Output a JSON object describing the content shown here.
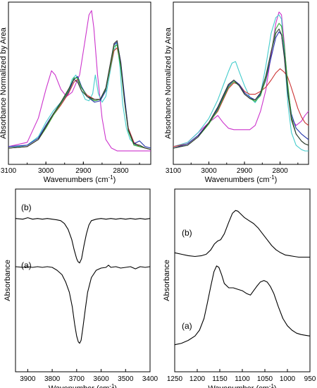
{
  "chart_data": [
    {
      "type": "line",
      "xlabel": "Wavenumbers (cm",
      "xlabel_sup": "-1",
      "xlabel_close": ")",
      "ylabel": "Absorbance Normalized by Area",
      "xlim": [
        3100,
        2720
      ],
      "ylim": [
        0,
        1
      ],
      "x_reversed": true,
      "xticks": [
        3100,
        3000,
        2900,
        2800
      ],
      "series": [
        {
          "color": "#cc33cc",
          "x": [
            3100,
            3050,
            3020,
            3000,
            2985,
            2975,
            2960,
            2945,
            2930,
            2910,
            2895,
            2885,
            2878,
            2872,
            2862,
            2850,
            2840,
            2825,
            2810,
            2795,
            2780,
            2765,
            2750,
            2735,
            2720
          ],
          "y": [
            0.05,
            0.08,
            0.25,
            0.45,
            0.58,
            0.55,
            0.45,
            0.4,
            0.43,
            0.55,
            0.8,
            0.97,
            1.0,
            0.88,
            0.55,
            0.25,
            0.1,
            0.04,
            0.02,
            0.02,
            0.02,
            0.02,
            0.02,
            0.02,
            0.02
          ]
        },
        {
          "color": "#44cccc",
          "x": [
            3100,
            3050,
            3020,
            3000,
            2980,
            2960,
            2940,
            2930,
            2920,
            2905,
            2895,
            2885,
            2875,
            2868,
            2860,
            2850,
            2840,
            2828,
            2818,
            2810,
            2802,
            2795,
            2785,
            2775,
            2760,
            2745,
            2735,
            2720
          ],
          "y": [
            0.04,
            0.06,
            0.12,
            0.22,
            0.3,
            0.36,
            0.44,
            0.52,
            0.55,
            0.44,
            0.38,
            0.37,
            0.42,
            0.55,
            0.42,
            0.36,
            0.4,
            0.58,
            0.72,
            0.78,
            0.6,
            0.35,
            0.18,
            0.1,
            0.06,
            0.05,
            0.04,
            0.03
          ]
        },
        {
          "color": "#cc3333",
          "x": [
            3100,
            3050,
            3020,
            3000,
            2980,
            2960,
            2940,
            2925,
            2915,
            2905,
            2890,
            2870,
            2855,
            2840,
            2828,
            2818,
            2810,
            2800,
            2790,
            2780,
            2765,
            2750,
            2735,
            2720
          ],
          "y": [
            0.04,
            0.05,
            0.1,
            0.18,
            0.27,
            0.34,
            0.42,
            0.5,
            0.52,
            0.46,
            0.41,
            0.38,
            0.38,
            0.45,
            0.6,
            0.72,
            0.74,
            0.62,
            0.38,
            0.18,
            0.08,
            0.05,
            0.04,
            0.03
          ]
        },
        {
          "color": "#2233aa",
          "x": [
            3100,
            3050,
            3020,
            3000,
            2980,
            2960,
            2940,
            2925,
            2915,
            2905,
            2890,
            2870,
            2855,
            2840,
            2828,
            2818,
            2810,
            2800,
            2790,
            2780,
            2765,
            2750,
            2735,
            2720
          ],
          "y": [
            0.05,
            0.06,
            0.11,
            0.2,
            0.28,
            0.35,
            0.43,
            0.52,
            0.54,
            0.47,
            0.4,
            0.36,
            0.37,
            0.44,
            0.62,
            0.76,
            0.78,
            0.64,
            0.4,
            0.17,
            0.07,
            0.09,
            0.05,
            0.04
          ]
        },
        {
          "color": "#33aa33",
          "x": [
            3100,
            3050,
            3020,
            3000,
            2980,
            2960,
            2940,
            2925,
            2915,
            2905,
            2890,
            2870,
            2855,
            2840,
            2828,
            2818,
            2810,
            2800,
            2790,
            2780,
            2765,
            2750,
            2735,
            2720
          ],
          "y": [
            0.04,
            0.05,
            0.1,
            0.18,
            0.27,
            0.35,
            0.44,
            0.53,
            0.53,
            0.46,
            0.4,
            0.37,
            0.38,
            0.45,
            0.61,
            0.75,
            0.76,
            0.6,
            0.36,
            0.16,
            0.06,
            0.05,
            0.04,
            0.03
          ]
        },
        {
          "color": "#333333",
          "x": [
            3100,
            3050,
            3020,
            3000,
            2980,
            2960,
            2940,
            2925,
            2915,
            2905,
            2890,
            2870,
            2855,
            2840,
            2828,
            2818,
            2810,
            2800,
            2790,
            2780,
            2765,
            2750,
            2735,
            2720
          ],
          "y": [
            0.04,
            0.05,
            0.1,
            0.19,
            0.28,
            0.36,
            0.45,
            0.52,
            0.5,
            0.44,
            0.4,
            0.38,
            0.38,
            0.46,
            0.63,
            0.77,
            0.79,
            0.63,
            0.37,
            0.17,
            0.07,
            0.06,
            0.04,
            0.03
          ]
        }
      ]
    },
    {
      "type": "line",
      "xlabel": "Wavenumbers (cm",
      "xlabel_sup": "-1",
      "xlabel_close": ")",
      "ylabel": "Absorbance Normalized by Area",
      "xlim": [
        3100,
        2720
      ],
      "ylim": [
        0,
        1
      ],
      "x_reversed": true,
      "xticks": [
        3100,
        3000,
        2900,
        2800
      ],
      "series": [
        {
          "color": "#cc33cc",
          "x": [
            3100,
            3060,
            3030,
            3000,
            2975,
            2960,
            2945,
            2930,
            2915,
            2900,
            2885,
            2870,
            2855,
            2840,
            2825,
            2812,
            2803,
            2796,
            2788,
            2778,
            2768,
            2755,
            2740,
            2730,
            2720
          ],
          "y": [
            0.05,
            0.08,
            0.15,
            0.22,
            0.27,
            0.22,
            0.18,
            0.17,
            0.17,
            0.17,
            0.17,
            0.2,
            0.3,
            0.45,
            0.7,
            0.92,
            1.0,
            0.98,
            0.78,
            0.45,
            0.25,
            0.2,
            0.23,
            0.27,
            0.3
          ]
        },
        {
          "color": "#44cccc",
          "x": [
            3100,
            3060,
            3030,
            3000,
            2975,
            2960,
            2945,
            2935,
            2925,
            2915,
            2900,
            2885,
            2870,
            2855,
            2840,
            2825,
            2812,
            2803,
            2796,
            2788,
            2778,
            2768,
            2755,
            2740,
            2730,
            2720
          ],
          "y": [
            0.05,
            0.08,
            0.15,
            0.25,
            0.38,
            0.48,
            0.58,
            0.64,
            0.65,
            0.58,
            0.48,
            0.4,
            0.36,
            0.42,
            0.62,
            0.85,
            0.96,
            0.98,
            0.95,
            0.7,
            0.35,
            0.15,
            0.06,
            0.03,
            0.02,
            0.02
          ]
        },
        {
          "color": "#cc3333",
          "x": [
            3100,
            3060,
            3030,
            3000,
            2975,
            2960,
            2945,
            2930,
            2915,
            2900,
            2885,
            2870,
            2855,
            2840,
            2825,
            2812,
            2800,
            2790,
            2780,
            2770,
            2760,
            2750,
            2740,
            2730,
            2720
          ],
          "y": [
            0.05,
            0.07,
            0.13,
            0.22,
            0.3,
            0.38,
            0.46,
            0.5,
            0.49,
            0.44,
            0.42,
            0.42,
            0.44,
            0.47,
            0.52,
            0.57,
            0.6,
            0.58,
            0.55,
            0.48,
            0.4,
            0.32,
            0.26,
            0.22,
            0.2
          ]
        },
        {
          "color": "#2233aa",
          "x": [
            3100,
            3060,
            3030,
            3000,
            2975,
            2960,
            2945,
            2930,
            2915,
            2900,
            2885,
            2870,
            2855,
            2840,
            2825,
            2812,
            2803,
            2796,
            2788,
            2778,
            2768,
            2755,
            2740,
            2730,
            2720
          ],
          "y": [
            0.04,
            0.07,
            0.13,
            0.22,
            0.32,
            0.4,
            0.48,
            0.52,
            0.49,
            0.43,
            0.4,
            0.38,
            0.42,
            0.52,
            0.68,
            0.82,
            0.86,
            0.84,
            0.7,
            0.45,
            0.28,
            0.18,
            0.14,
            0.12,
            0.1
          ]
        },
        {
          "color": "#33aa33",
          "x": [
            3100,
            3060,
            3030,
            3000,
            2975,
            2960,
            2945,
            2930,
            2915,
            2900,
            2885,
            2870,
            2855,
            2840,
            2825,
            2812,
            2803,
            2796,
            2788,
            2778,
            2768,
            2755,
            2740,
            2730,
            2720
          ],
          "y": [
            0.04,
            0.06,
            0.12,
            0.21,
            0.31,
            0.39,
            0.47,
            0.51,
            0.48,
            0.42,
            0.39,
            0.37,
            0.41,
            0.53,
            0.72,
            0.88,
            0.92,
            0.9,
            0.76,
            0.48,
            0.26,
            0.14,
            0.09,
            0.07,
            0.06
          ]
        },
        {
          "color": "#333333",
          "x": [
            3100,
            3060,
            3030,
            3000,
            2975,
            2960,
            2945,
            2930,
            2915,
            2900,
            2885,
            2870,
            2855,
            2840,
            2825,
            2812,
            2803,
            2796,
            2788,
            2778,
            2768,
            2755,
            2740,
            2730,
            2720
          ],
          "y": [
            0.04,
            0.06,
            0.12,
            0.22,
            0.33,
            0.41,
            0.49,
            0.52,
            0.48,
            0.42,
            0.39,
            0.38,
            0.43,
            0.55,
            0.72,
            0.85,
            0.88,
            0.84,
            0.68,
            0.42,
            0.24,
            0.14,
            0.09,
            0.07,
            0.06
          ]
        }
      ]
    },
    {
      "type": "line",
      "xlabel": "Wavenumber (cm",
      "xlabel_sup": "-1",
      "xlabel_close": ")",
      "ylabel": "Absorbance",
      "xlim": [
        3950,
        3400
      ],
      "ylim": [
        0,
        1
      ],
      "x_reversed": true,
      "xticks": [
        3900,
        3800,
        3700,
        3600,
        3500,
        3400
      ],
      "labels": [
        "(b)",
        "(a)"
      ],
      "series": [
        {
          "name": "(b)",
          "color": "#000000",
          "x": [
            3950,
            3920,
            3900,
            3880,
            3860,
            3840,
            3820,
            3800,
            3780,
            3765,
            3750,
            3735,
            3720,
            3710,
            3700,
            3695,
            3688,
            3680,
            3670,
            3660,
            3650,
            3640,
            3620,
            3600,
            3580,
            3560,
            3540,
            3520,
            3500,
            3480,
            3460,
            3440,
            3420,
            3400
          ],
          "y": [
            0.905,
            0.9,
            0.91,
            0.9,
            0.905,
            0.9,
            0.905,
            0.9,
            0.895,
            0.89,
            0.87,
            0.83,
            0.76,
            0.69,
            0.63,
            0.61,
            0.6,
            0.63,
            0.72,
            0.8,
            0.86,
            0.89,
            0.9,
            0.905,
            0.9,
            0.905,
            0.9,
            0.905,
            0.9,
            0.905,
            0.9,
            0.905,
            0.9,
            0.905
          ]
        },
        {
          "name": "(a)",
          "color": "#000000",
          "x": [
            3950,
            3920,
            3900,
            3880,
            3860,
            3840,
            3820,
            3800,
            3780,
            3760,
            3745,
            3730,
            3718,
            3708,
            3700,
            3693,
            3688,
            3682,
            3675,
            3665,
            3655,
            3640,
            3620,
            3600,
            3580,
            3570,
            3560,
            3540,
            3520,
            3500,
            3480,
            3460,
            3440,
            3420,
            3400
          ],
          "y": [
            0.575,
            0.57,
            0.575,
            0.57,
            0.575,
            0.57,
            0.575,
            0.57,
            0.55,
            0.52,
            0.47,
            0.4,
            0.3,
            0.18,
            0.1,
            0.06,
            0.05,
            0.07,
            0.15,
            0.28,
            0.4,
            0.5,
            0.55,
            0.565,
            0.57,
            0.585,
            0.57,
            0.575,
            0.565,
            0.57,
            0.575,
            0.56,
            0.575,
            0.57,
            0.575
          ]
        }
      ]
    },
    {
      "type": "line",
      "xlabel": "Wavenumber (cm",
      "xlabel_sup": "-1",
      "xlabel_close": ")",
      "ylabel": "Absorbance",
      "xlim": [
        1250,
        950
      ],
      "ylim": [
        0,
        1
      ],
      "x_reversed": true,
      "xticks": [
        1250,
        1200,
        1150,
        1100,
        1050,
        1000,
        950
      ],
      "labels": [
        "(b)",
        "(a)"
      ],
      "series": [
        {
          "name": "(b)",
          "color": "#000000",
          "x": [
            1250,
            1235,
            1220,
            1205,
            1190,
            1180,
            1170,
            1162,
            1155,
            1148,
            1140,
            1130,
            1122,
            1115,
            1110,
            1105,
            1095,
            1085,
            1075,
            1065,
            1055,
            1045,
            1035,
            1025,
            1015,
            1005,
            995,
            985,
            975,
            965,
            955,
            950
          ],
          "y": [
            0.67,
            0.66,
            0.65,
            0.645,
            0.65,
            0.66,
            0.69,
            0.73,
            0.75,
            0.76,
            0.8,
            0.88,
            0.94,
            0.96,
            0.955,
            0.94,
            0.91,
            0.89,
            0.87,
            0.84,
            0.8,
            0.76,
            0.72,
            0.69,
            0.67,
            0.655,
            0.65,
            0.645,
            0.64,
            0.64,
            0.64,
            0.64
          ]
        },
        {
          "name": "(a)",
          "color": "#000000",
          "x": [
            1250,
            1235,
            1220,
            1205,
            1195,
            1185,
            1178,
            1170,
            1163,
            1157,
            1152,
            1146,
            1140,
            1130,
            1120,
            1110,
            1100,
            1090,
            1082,
            1075,
            1068,
            1060,
            1052,
            1045,
            1038,
            1030,
            1020,
            1010,
            1000,
            990,
            980,
            970,
            960,
            950
          ],
          "y": [
            0.04,
            0.05,
            0.07,
            0.1,
            0.14,
            0.22,
            0.32,
            0.44,
            0.54,
            0.58,
            0.57,
            0.52,
            0.46,
            0.43,
            0.43,
            0.42,
            0.41,
            0.39,
            0.38,
            0.41,
            0.44,
            0.47,
            0.48,
            0.47,
            0.44,
            0.39,
            0.3,
            0.22,
            0.17,
            0.14,
            0.12,
            0.11,
            0.105,
            0.1
          ]
        }
      ]
    }
  ]
}
